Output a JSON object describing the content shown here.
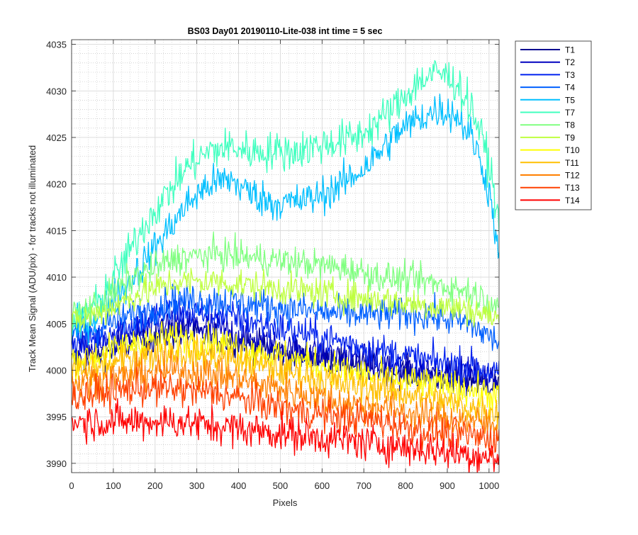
{
  "chart_data": {
    "type": "line",
    "title": "BS03 Day01 20190110-Lite-038 int time = 5 sec",
    "xlabel": "Pixels",
    "ylabel": "Track Mean Signal (ADU/pix) - for tracks not illuminated",
    "xlim": [
      0,
      1024
    ],
    "ylim": [
      3989,
      4035.5
    ],
    "x_ticks": [
      0,
      100,
      200,
      300,
      400,
      500,
      600,
      700,
      800,
      900,
      1000
    ],
    "y_ticks": [
      3990,
      3995,
      4000,
      4005,
      4010,
      4015,
      4020,
      4025,
      4030,
      4035
    ],
    "grid": true,
    "minor_grid": true,
    "legend_position": "outside-right",
    "series": [
      {
        "name": "T1",
        "color": "#00008f",
        "noise": 1.2,
        "x": [
          0,
          60,
          150,
          250,
          350,
          450,
          550,
          650,
          750,
          850,
          950,
          1024
        ],
        "y": [
          4001,
          4001.5,
          4003,
          4004,
          4003.5,
          4002.5,
          4001.5,
          4001,
          4000,
          3999.5,
          3999,
          3998.5
        ]
      },
      {
        "name": "T2",
        "color": "#0000bf",
        "noise": 1.3,
        "x": [
          0,
          60,
          150,
          250,
          350,
          450,
          550,
          650,
          750,
          850,
          950,
          1024
        ],
        "y": [
          4002,
          4002.5,
          4004,
          4005,
          4004.5,
          4003,
          4002,
          4001.5,
          4000.5,
          4000,
          3999.5,
          3999
        ]
      },
      {
        "name": "T3",
        "color": "#0020ef",
        "noise": 1.3,
        "x": [
          0,
          60,
          150,
          250,
          350,
          450,
          550,
          650,
          750,
          850,
          950,
          1024
        ],
        "y": [
          4003,
          4003.5,
          4005,
          4006.5,
          4006,
          4005,
          4004,
          4003,
          4002,
          4001,
          4000.5,
          3999.5
        ]
      },
      {
        "name": "T4",
        "color": "#0060ff",
        "noise": 1.3,
        "x": [
          0,
          60,
          150,
          250,
          350,
          450,
          550,
          650,
          750,
          850,
          950,
          1024
        ],
        "y": [
          4004,
          4004.5,
          4006,
          4007.5,
          4007.5,
          4007,
          4006.5,
          4006,
          4006,
          4006,
          4005,
          4003
        ]
      },
      {
        "name": "T5",
        "color": "#00bfff",
        "noise": 1.4,
        "x": [
          0,
          60,
          130,
          180,
          230,
          280,
          330,
          380,
          430,
          480,
          530,
          580,
          630,
          680,
          730,
          780,
          830,
          880,
          920,
          960,
          990,
          1010,
          1024
        ],
        "y": [
          4004,
          4006,
          4009,
          4012,
          4015,
          4018,
          4020,
          4020.5,
          4019,
          4018,
          4018,
          4018.5,
          4019.5,
          4021,
          4023,
          4025.5,
          4027,
          4028,
          4027.5,
          4025,
          4021,
          4017,
          4011
        ]
      },
      {
        "name": "T7",
        "color": "#40ffbf",
        "noise": 1.5,
        "x": [
          0,
          60,
          130,
          180,
          230,
          280,
          330,
          380,
          430,
          480,
          530,
          580,
          630,
          680,
          730,
          780,
          830,
          880,
          920,
          960,
          990,
          1010,
          1024
        ],
        "y": [
          4005,
          4007,
          4012,
          4016,
          4019,
          4022,
          4023.5,
          4024,
          4023.5,
          4023.5,
          4023.5,
          4024,
          4024.5,
          4025,
          4026.5,
          4028.5,
          4031,
          4032,
          4031,
          4028,
          4024,
          4020,
          4015
        ]
      },
      {
        "name": "T8",
        "color": "#80ff80",
        "noise": 1.2,
        "x": [
          0,
          60,
          150,
          250,
          350,
          450,
          550,
          650,
          750,
          850,
          950,
          1024
        ],
        "y": [
          4006,
          4007,
          4010,
          4012,
          4012.5,
          4012,
          4011.5,
          4011,
          4010,
          4009.5,
          4008.5,
          4007
        ]
      },
      {
        "name": "T9",
        "color": "#bfff40",
        "noise": 1.2,
        "x": [
          0,
          60,
          150,
          250,
          350,
          450,
          550,
          650,
          750,
          850,
          950,
          1024
        ],
        "y": [
          4005,
          4006,
          4008,
          4009.5,
          4009.5,
          4009,
          4008.5,
          4008,
          4007.5,
          4007,
          4006.5,
          4005.5
        ]
      },
      {
        "name": "T10",
        "color": "#ffff00",
        "noise": 1.3,
        "x": [
          0,
          60,
          150,
          250,
          350,
          450,
          550,
          650,
          750,
          850,
          950,
          1024
        ],
        "y": [
          4001,
          4001.5,
          4003,
          4003.5,
          4003,
          4002,
          4001,
          4000,
          3999,
          3998.5,
          3998,
          3997
        ]
      },
      {
        "name": "T11",
        "color": "#ffbf00",
        "noise": 1.3,
        "x": [
          0,
          60,
          150,
          250,
          350,
          450,
          550,
          650,
          750,
          850,
          950,
          1024
        ],
        "y": [
          4000,
          4000,
          4001.5,
          4002,
          4001.5,
          4000.5,
          3999.5,
          3998.5,
          3998,
          3997,
          3996,
          3995.5
        ]
      },
      {
        "name": "T12",
        "color": "#ff8000",
        "noise": 1.3,
        "x": [
          0,
          60,
          150,
          250,
          350,
          450,
          550,
          650,
          750,
          850,
          950,
          1024
        ],
        "y": [
          3998.5,
          3999,
          3999.5,
          4000,
          3999.5,
          3998.5,
          3997.5,
          3996.5,
          3996,
          3995,
          3994.5,
          3994
        ]
      },
      {
        "name": "T13",
        "color": "#ff4000",
        "noise": 1.3,
        "x": [
          0,
          60,
          150,
          250,
          350,
          450,
          550,
          650,
          750,
          850,
          950,
          1024
        ],
        "y": [
          3997,
          3997.5,
          3998,
          3998,
          3997.5,
          3996.5,
          3995.5,
          3995,
          3994.5,
          3993.5,
          3993,
          3992.5
        ]
      },
      {
        "name": "T14",
        "color": "#ff0000",
        "noise": 1.4,
        "x": [
          0,
          60,
          150,
          250,
          350,
          450,
          550,
          650,
          750,
          850,
          950,
          1024
        ],
        "y": [
          3994.5,
          3994.5,
          3994.5,
          3994.5,
          3994,
          3993.5,
          3993,
          3992.5,
          3992,
          3991.5,
          3991,
          3990.5
        ]
      }
    ]
  }
}
